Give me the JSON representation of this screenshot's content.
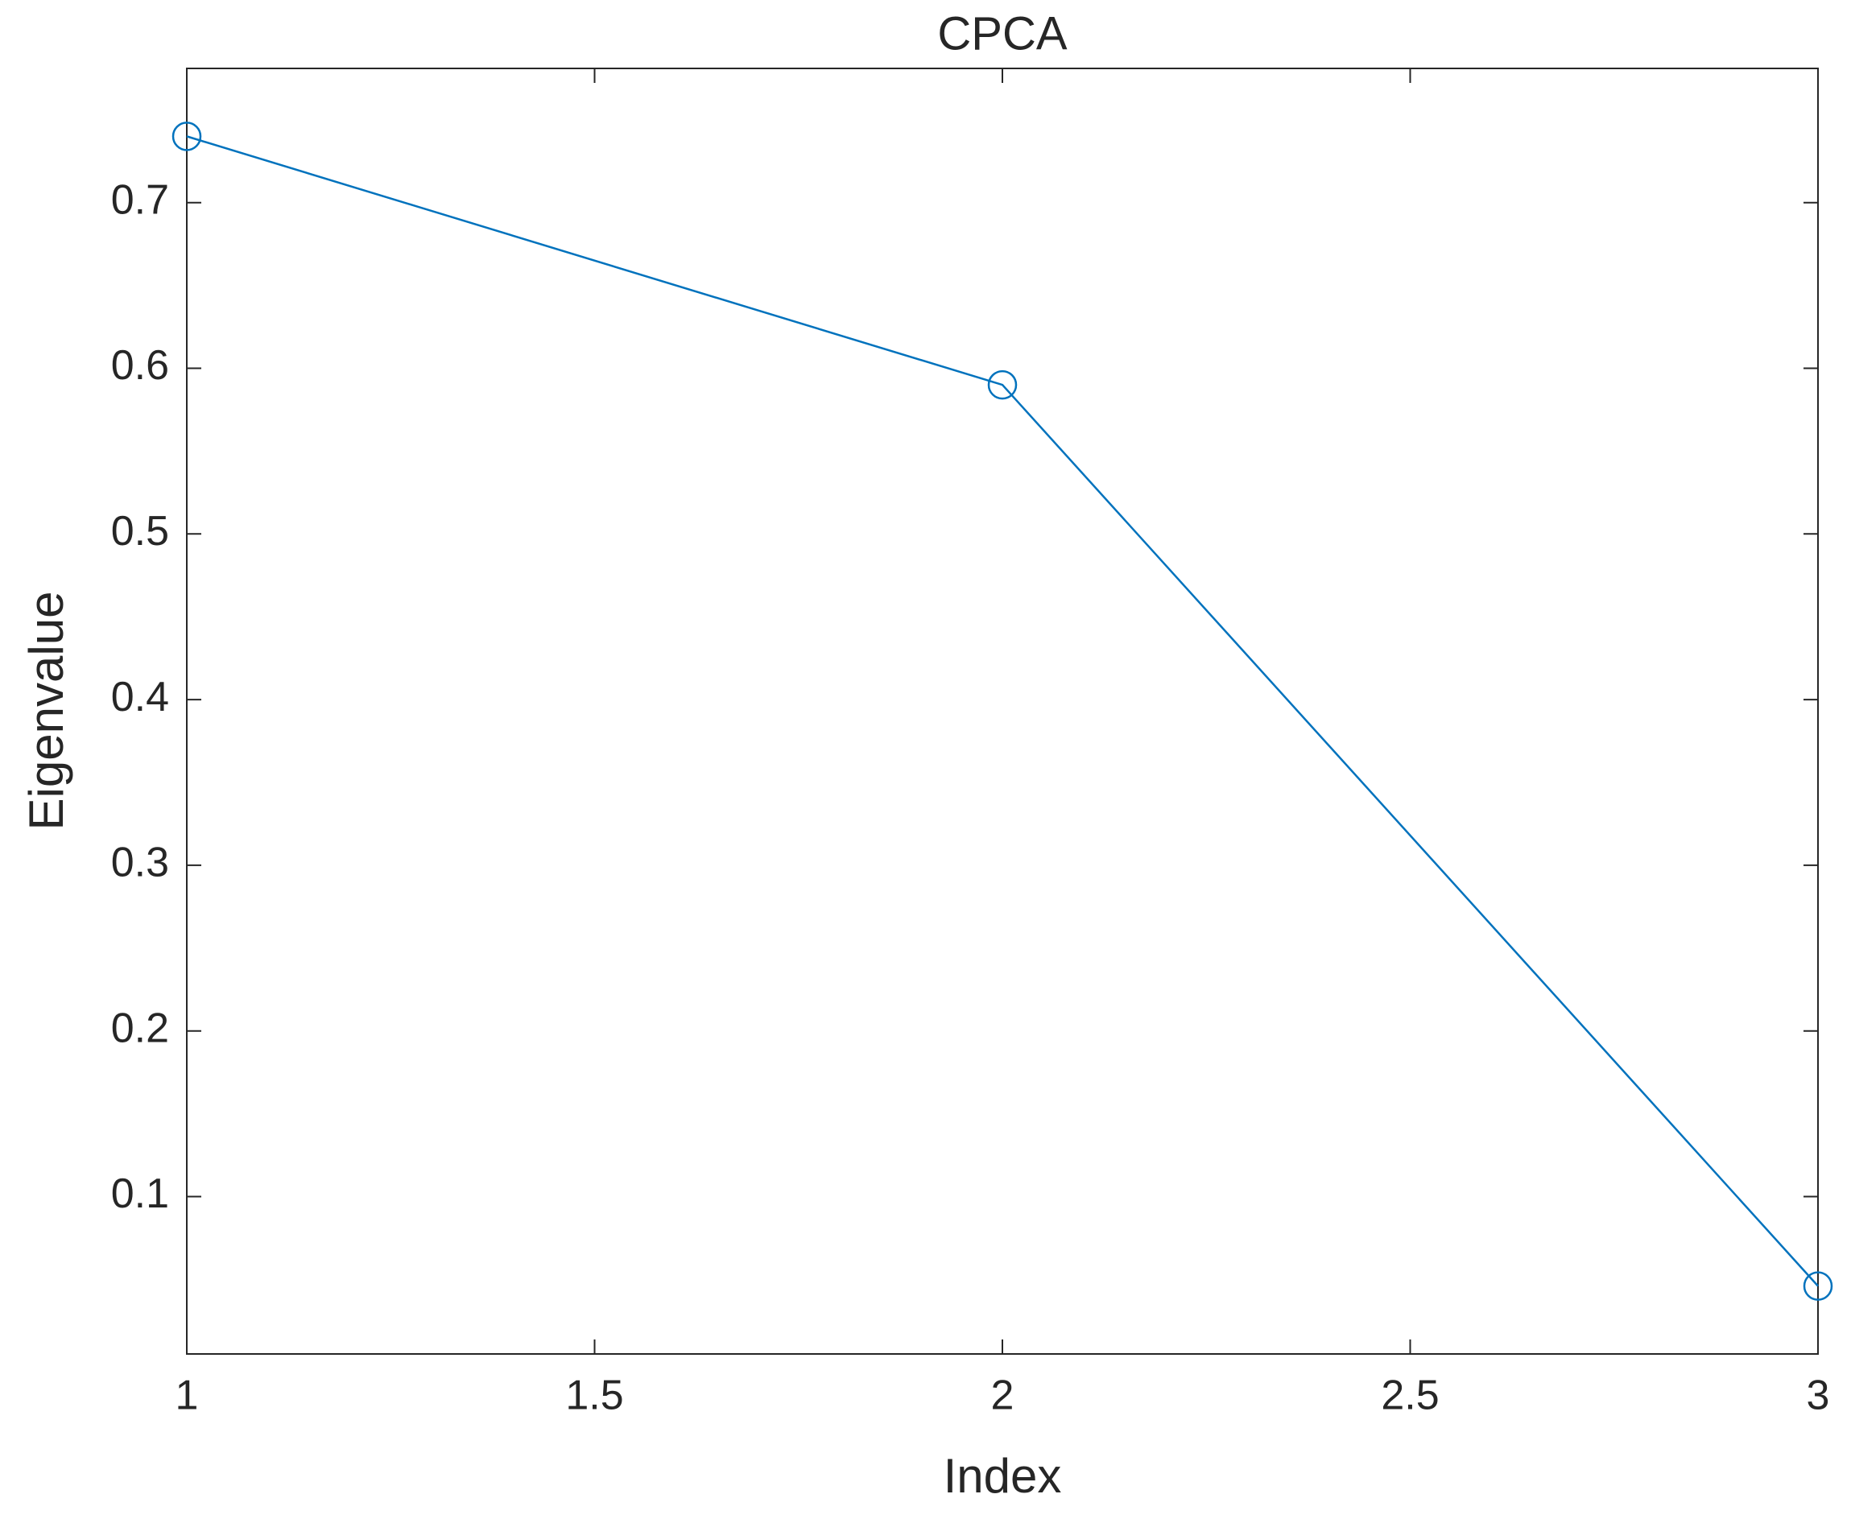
{
  "chart_data": {
    "type": "line",
    "title": "CPCA",
    "xlabel": "Index",
    "ylabel": "Eigenvalue",
    "x": [
      1,
      2,
      3
    ],
    "series": [
      {
        "name": "Eigenvalue",
        "color": "#0072bd",
        "values": [
          0.74,
          0.59,
          0.046
        ]
      }
    ],
    "xlim": [
      1,
      3
    ],
    "xticks": [
      1,
      1.5,
      2,
      2.5,
      3
    ],
    "ylim": [
      0.005,
      0.781
    ],
    "yticks": [
      0.1,
      0.2,
      0.3,
      0.4,
      0.5,
      0.6,
      0.7
    ],
    "grid": false,
    "marker": "circle"
  }
}
